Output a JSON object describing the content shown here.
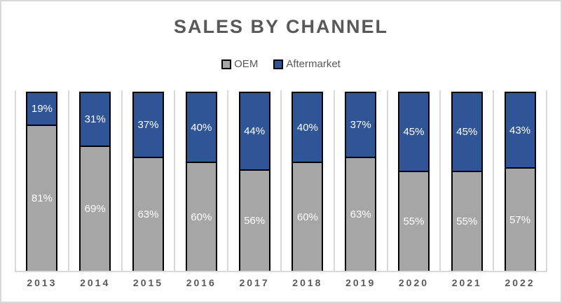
{
  "chart": {
    "title": "SALES BY CHANNEL",
    "legend": [
      {
        "label": "OEM",
        "color": "#A6A6A6"
      },
      {
        "label": "Aftermarket",
        "color": "#2F5597"
      }
    ]
  },
  "chart_data": {
    "type": "bar",
    "subtype": "stacked-percent",
    "title": "SALES BY CHANNEL",
    "categories": [
      "2013",
      "2014",
      "2015",
      "2016",
      "2017",
      "2018",
      "2019",
      "2020",
      "2021",
      "2022"
    ],
    "series": [
      {
        "name": "OEM",
        "color": "#A6A6A6",
        "values": [
          81,
          69,
          63,
          60,
          56,
          60,
          63,
          55,
          55,
          57
        ],
        "labels": [
          "81%",
          "69%",
          "63%",
          "60%",
          "56%",
          "60%",
          "63%",
          "55%",
          "55%",
          "57%"
        ]
      },
      {
        "name": "Aftermarket",
        "color": "#2F5597",
        "values": [
          19,
          31,
          37,
          40,
          44,
          40,
          37,
          45,
          45,
          43
        ],
        "labels": [
          "19%",
          "31%",
          "37%",
          "40%",
          "44%",
          "40%",
          "37%",
          "45%",
          "45%",
          "43%"
        ]
      }
    ],
    "xlabel": "",
    "ylabel": "",
    "ylim": [
      0,
      100
    ],
    "grid": "vertical-category-boundaries",
    "legend_position": "top-center",
    "data_label_color": "#FFFFFF"
  },
  "colors": {
    "oem_fill": "#A6A6A6",
    "aftermarket_fill": "#2F5597",
    "bar_border": "#000000",
    "text": "#595959",
    "gridline": "#D9D9D9",
    "chart_border": "#D9D9D9",
    "background": "#FFFFFF"
  }
}
